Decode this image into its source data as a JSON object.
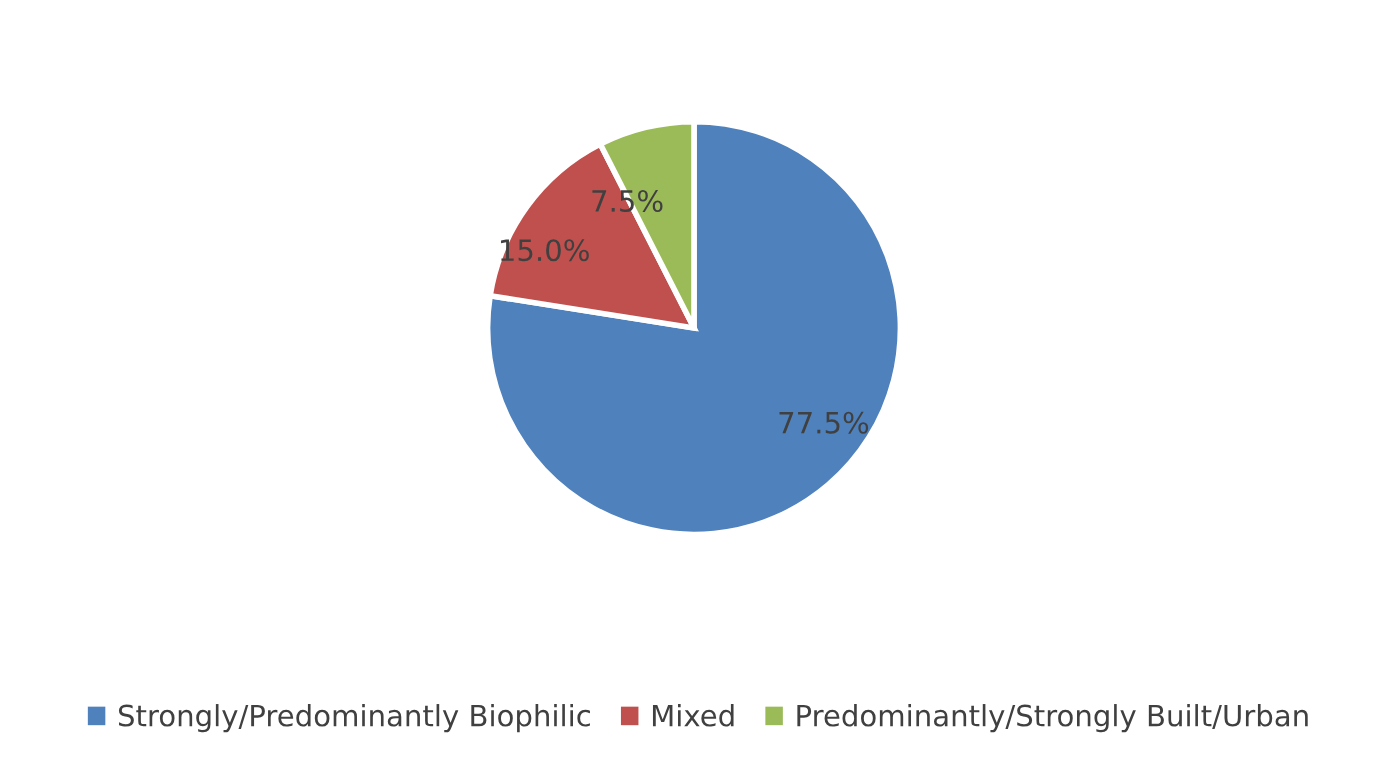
{
  "chart_data": {
    "type": "pie",
    "categories": [
      "Strongly/Predominantly Biophilic",
      "Mixed",
      "Predominantly/Strongly Built/Urban"
    ],
    "values": [
      77.5,
      15.0,
      7.5
    ],
    "value_labels": [
      "77.5%",
      "15.0%",
      "7.5%"
    ],
    "colors": [
      "#4f81bd",
      "#c0504d",
      "#9bbb59"
    ],
    "legend": "bottom"
  }
}
